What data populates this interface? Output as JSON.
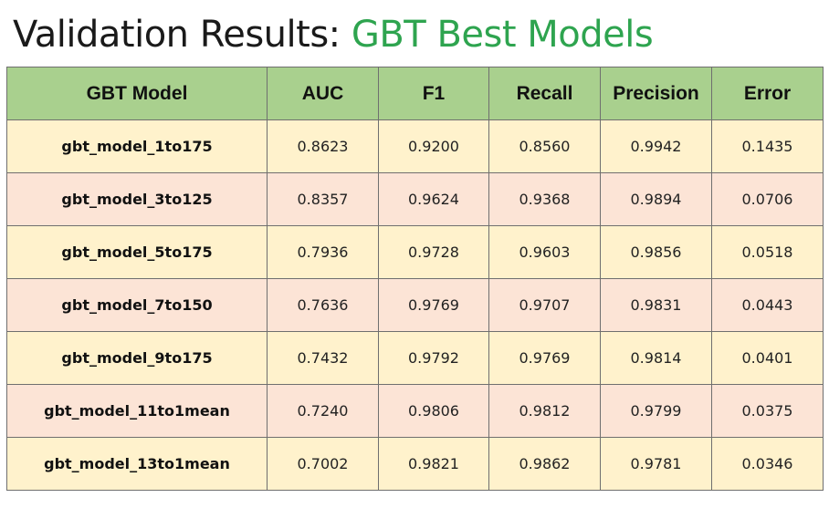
{
  "title": {
    "prefix": "Validation Results: ",
    "accent": "GBT Best Models",
    "accent_color": "#2ea44f"
  },
  "colors": {
    "header_bg": "#a9d08e",
    "row_odd_bg": "#fff2cc",
    "row_even_bg": "#fce4d6"
  },
  "table": {
    "headers": [
      "GBT Model",
      "AUC",
      "F1",
      "Recall",
      "Precision",
      "Error"
    ],
    "rows": [
      [
        "gbt_model_1to175",
        "0.8623",
        "0.9200",
        "0.8560",
        "0.9942",
        "0.1435"
      ],
      [
        "gbt_model_3to125",
        "0.8357",
        "0.9624",
        "0.9368",
        "0.9894",
        "0.0706"
      ],
      [
        "gbt_model_5to175",
        "0.7936",
        "0.9728",
        "0.9603",
        "0.9856",
        "0.0518"
      ],
      [
        "gbt_model_7to150",
        "0.7636",
        "0.9769",
        "0.9707",
        "0.9831",
        "0.0443"
      ],
      [
        "gbt_model_9to175",
        "0.7432",
        "0.9792",
        "0.9769",
        "0.9814",
        "0.0401"
      ],
      [
        "gbt_model_11to1mean",
        "0.7240",
        "0.9806",
        "0.9812",
        "0.9799",
        "0.0375"
      ],
      [
        "gbt_model_13to1mean",
        "0.7002",
        "0.9821",
        "0.9862",
        "0.9781",
        "0.0346"
      ]
    ]
  }
}
